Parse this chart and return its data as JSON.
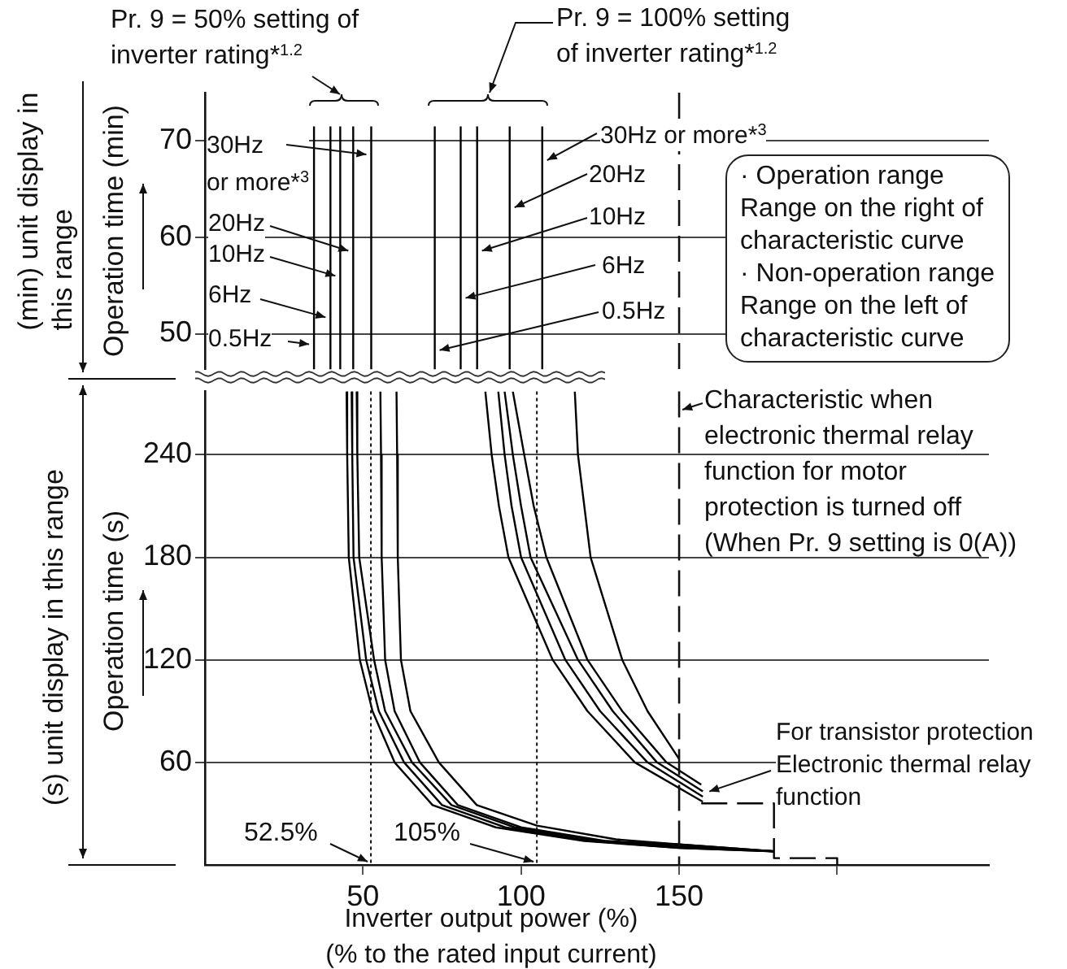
{
  "chart_data": [
    {
      "type": "line",
      "ylabel": "Operation time (min)",
      "xlim": [
        0,
        248
      ],
      "ylim": [
        46.3,
        75
      ],
      "yticks": [
        50,
        60,
        70
      ],
      "tick_labels": "y",
      "grid": "y",
      "series": [
        {
          "color": "#000000",
          "x": [
            34.5,
            34.5
          ],
          "values": [
            46.3,
            71.5
          ]
        },
        {
          "color": "#000000",
          "x": [
            39.7,
            39.7
          ],
          "values": [
            46.3,
            71.5
          ]
        },
        {
          "color": "#000000",
          "x": [
            42.8,
            42.8
          ],
          "values": [
            46.3,
            71.5
          ]
        },
        {
          "color": "#000000",
          "x": [
            46.9,
            46.9
          ],
          "values": [
            46.3,
            71.5
          ]
        },
        {
          "color": "#000000",
          "x": [
            52.6,
            52.6
          ],
          "values": [
            46.3,
            71.5
          ]
        },
        {
          "color": "#000000",
          "x": [
            72.7,
            72.7
          ],
          "values": [
            46.3,
            71.5
          ]
        },
        {
          "color": "#000000",
          "x": [
            80.9,
            80.9
          ],
          "values": [
            46.3,
            71.5
          ]
        },
        {
          "color": "#000000",
          "x": [
            86.1,
            86.1
          ],
          "values": [
            46.3,
            71.5
          ]
        },
        {
          "color": "#000000",
          "x": [
            96.4,
            96.4
          ],
          "values": [
            46.3,
            71.5
          ]
        },
        {
          "color": "#000000",
          "x": [
            106.7,
            106.7
          ],
          "values": [
            46.3,
            71.5
          ]
        }
      ],
      "ref_lines": [
        {
          "axis": "x",
          "value": 150,
          "line_style": "dashed"
        }
      ],
      "annotations": [
        "Pr. 9 = 50% setting of\ninverter rating*$^{1.2}$",
        "Pr. 9 = 100% setting\nof inverter rating*$^{1.2}$",
        {
          "text": "30Hz\nor more*$^{3}$",
          "x": 52.6,
          "y": 68.6
        },
        {
          "text": "20Hz",
          "x": 46.9,
          "y": 58.6
        },
        {
          "text": "10Hz",
          "x": 42.8,
          "y": 56
        },
        {
          "text": "6Hz",
          "x": 39.7,
          "y": 51.7
        },
        {
          "text": "0.5Hz",
          "x": 34.5,
          "y": 48.9
        },
        {
          "text": "30Hz or more*$^{3}$",
          "x": 106.7,
          "y": 68
        },
        {
          "text": "20Hz",
          "x": 96.4,
          "y": 63.1
        },
        {
          "text": "10Hz",
          "x": 86.1,
          "y": 58.6
        },
        {
          "text": "6Hz",
          "x": 80.9,
          "y": 53.7
        },
        {
          "text": "0.5Hz",
          "x": 72.7,
          "y": 48.3
        },
        "(min) unit display in\nthis range",
        "· Operation range\nRange on the right of\ncharacteristic curve\n· Non-operation range\nRange on the left of\ncharacteristic curve"
      ]
    },
    {
      "type": "line",
      "ylabel": "Operation time (s)",
      "xlabel": "Inverter output power (%)\n(% to the rated input current)",
      "xlim": [
        0,
        248
      ],
      "xticks": [
        50,
        100,
        150,
        {
          "value": 200,
          "label": null
        }
      ],
      "ylim": [
        0,
        277
      ],
      "yticks": [
        60,
        120,
        180,
        240
      ],
      "grid": "y",
      "series": [
        {
          "color": "#000000",
          "x": [
            44.8,
            45,
            45.5,
            49,
            53,
            60,
            72,
            92,
            120,
            150,
            180
          ],
          "values": [
            277,
            240,
            180,
            120,
            90,
            60,
            35,
            22,
            14,
            10,
            8
          ]
        },
        {
          "color": "#000000",
          "x": [
            46.4,
            46.6,
            47,
            51,
            55,
            63,
            75,
            95,
            122,
            150,
            180
          ],
          "values": [
            277,
            240,
            180,
            120,
            90,
            60,
            35,
            22,
            14,
            10,
            8
          ]
        },
        {
          "color": "#000000",
          "x": [
            48,
            48.2,
            48.8,
            53.5,
            57,
            65.5,
            78,
            98,
            125,
            150,
            180
          ],
          "values": [
            277,
            240,
            180,
            120,
            90,
            60,
            35,
            22,
            14,
            11,
            8
          ]
        },
        {
          "color": "#000000",
          "x": [
            55.5,
            55.7,
            55.9,
            57,
            60,
            68,
            80,
            100,
            127,
            150,
            180
          ],
          "values": [
            277,
            240,
            180,
            120,
            90,
            60,
            35,
            22,
            14,
            12,
            8
          ]
        },
        {
          "color": "#000000",
          "x": [
            60.6,
            60.8,
            61,
            62,
            65,
            74,
            86,
            105,
            130,
            150,
            180
          ],
          "values": [
            277,
            240,
            180,
            120,
            90,
            60,
            35,
            23,
            15,
            12,
            8
          ]
        },
        {
          "color": "#000000",
          "x": [
            88.7,
            90.7,
            93,
            96,
            110,
            121,
            136,
            157.5
          ],
          "values": [
            277,
            240,
            210,
            180,
            120,
            90,
            60,
            37
          ]
        },
        {
          "color": "#000000",
          "x": [
            92.8,
            94.8,
            97,
            100,
            114,
            125,
            140,
            157.5
          ],
          "values": [
            277,
            240,
            210,
            180,
            120,
            90,
            60,
            40
          ]
        },
        {
          "color": "#000000",
          "x": [
            94.8,
            97.4,
            100,
            103,
            118,
            129,
            143,
            157.5
          ],
          "values": [
            277,
            240,
            210,
            180,
            120,
            90,
            60,
            43
          ]
        },
        {
          "color": "#000000",
          "x": [
            97.4,
            101,
            104,
            108,
            121,
            132,
            146,
            157
          ],
          "values": [
            277,
            240,
            210,
            180,
            120,
            90,
            60,
            47
          ]
        },
        {
          "color": "#000000",
          "x": [
            117,
            118,
            120,
            122,
            132,
            140,
            150
          ],
          "values": [
            277,
            240,
            210,
            180,
            120,
            90,
            62
          ]
        },
        {
          "color": "#000000",
          "line_style": "dashed",
          "x": [
            157,
            180,
            180,
            200,
            200
          ],
          "values": [
            36,
            36,
            4,
            4,
            0
          ]
        }
      ],
      "ref_lines": [
        {
          "axis": "x",
          "value": 52.5,
          "label": "52.5%",
          "line_style": "dotted"
        },
        {
          "axis": "x",
          "value": 105,
          "label": "105%",
          "line_style": "dotted"
        },
        {
          "axis": "x",
          "value": 150,
          "label": "Characteristic when\nelectronic thermal relay\nfunction for motor\nprotection is turned off\n(When Pr. 9 setting is 0(A))",
          "line_style": "dashed"
        }
      ],
      "annotations": [
        "(s) unit display in this range",
        {
          "text": "For transistor protection\nElectronic thermal relay\nfunction",
          "x": 158,
          "y": 43
        }
      ]
    }
  ]
}
